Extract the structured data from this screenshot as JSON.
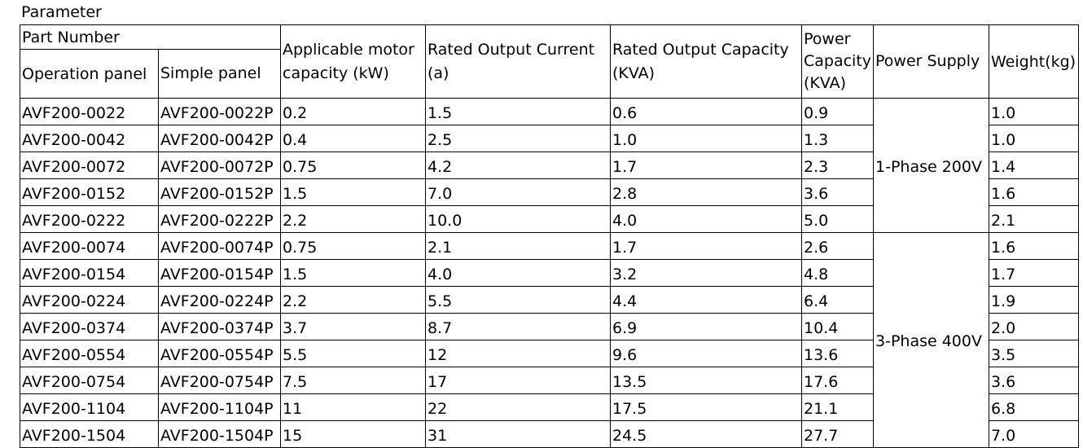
{
  "caption": "Parameter",
  "header": {
    "part_number": "Part Number",
    "operation_panel": "Operation panel",
    "simple_panel": "Simple panel",
    "motor_capacity": "Applicable motor capacity (kW)",
    "output_current": "Rated Output Current (a)",
    "output_capacity": "Rated Output Capacity (KVA)",
    "power_capacity": "Power Capacity (KVA)",
    "power_supply": "Power Supply",
    "weight": "Weight(kg)"
  },
  "supply_groups": {
    "single_phase": "1-Phase 200V",
    "three_phase": "3-Phase 400V"
  },
  "rows": [
    [
      "AVF200-0022",
      "AVF200-0022P",
      "0.2",
      "1.5",
      "0.6",
      "0.9",
      "1.0"
    ],
    [
      "AVF200-0042",
      "AVF200-0042P",
      "0.4",
      "2.5",
      "1.0",
      "1.3",
      "1.0"
    ],
    [
      "AVF200-0072",
      "AVF200-0072P",
      "0.75",
      "4.2",
      "1.7",
      "2.3",
      "1.4"
    ],
    [
      "AVF200-0152",
      "AVF200-0152P",
      "1.5",
      "7.0",
      "2.8",
      "3.6",
      "1.6"
    ],
    [
      "AVF200-0222",
      "AVF200-0222P",
      "2.2",
      "10.0",
      "4.0",
      "5.0",
      "2.1"
    ],
    [
      "AVF200-0074",
      "AVF200-0074P",
      "0.75",
      "2.1",
      "1.7",
      "2.6",
      "1.6"
    ],
    [
      "AVF200-0154",
      "AVF200-0154P",
      "1.5",
      "4.0",
      "3.2",
      "4.8",
      "1.7"
    ],
    [
      "AVF200-0224",
      "AVF200-0224P",
      "2.2",
      "5.5",
      "4.4",
      "6.4",
      "1.9"
    ],
    [
      "AVF200-0374",
      "AVF200-0374P",
      "3.7",
      "8.7",
      "6.9",
      "10.4",
      "2.0"
    ],
    [
      "AVF200-0554",
      "AVF200-0554P",
      "5.5",
      "12",
      "9.6",
      "13.6",
      "3.5"
    ],
    [
      "AVF200-0754",
      "AVF200-0754P",
      "7.5",
      "17",
      "13.5",
      "17.6",
      "3.6"
    ],
    [
      "AVF200-1104",
      "AVF200-1104P",
      "11",
      "22",
      "17.5",
      "21.1",
      "6.8"
    ],
    [
      "AVF200-1504",
      "AVF200-1504P",
      "15",
      "31",
      "24.5",
      "27.7",
      "7.0"
    ]
  ]
}
